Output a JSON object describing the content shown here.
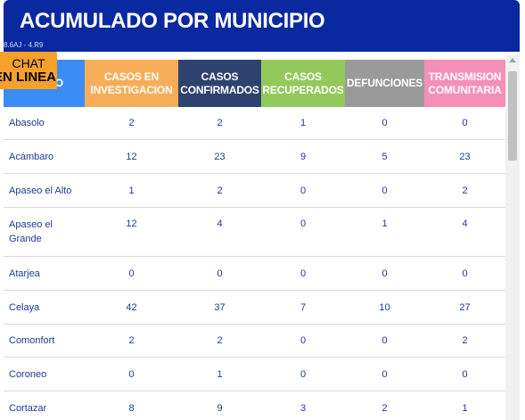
{
  "title": "ACUMULADO POR MUNICIPIO",
  "tiny_text": "8.6AJ - 4.R9",
  "chat": {
    "line1": "CHAT",
    "line2": "EN LINEA"
  },
  "colors": {
    "title_bg": "#0a28a0",
    "municipio": "#3b8cf5",
    "investigacion": "#f7ad58",
    "confirmados": "#2e4270",
    "recuperados": "#93c95a",
    "defunciones": "#9a9a9a",
    "comunitaria": "#f48fb8"
  },
  "headers": {
    "municipio": "MO",
    "investigacion": "CASOS EN INVESTIGACION",
    "confirmados": "CASOS CONFIRMADOS",
    "recuperados": "CASOS RECUPERADOS",
    "defunciones": "DEFUNCIONES",
    "comunitaria": "TRANSMISION COMUNITARIA"
  },
  "rows": [
    {
      "municipio": "Abasolo",
      "investigacion": "2",
      "confirmados": "2",
      "recuperados": "1",
      "defunciones": "0",
      "comunitaria": "0"
    },
    {
      "municipio": "Acámbaro",
      "investigacion": "12",
      "confirmados": "23",
      "recuperados": "9",
      "defunciones": "5",
      "comunitaria": "23"
    },
    {
      "municipio": "Apaseo el Alto",
      "investigacion": "1",
      "confirmados": "2",
      "recuperados": "0",
      "defunciones": "0",
      "comunitaria": "2"
    },
    {
      "municipio": "Apaseo el Grande",
      "investigacion": "12",
      "confirmados": "4",
      "recuperados": "0",
      "defunciones": "1",
      "comunitaria": "4"
    },
    {
      "municipio": "Atarjea",
      "investigacion": "0",
      "confirmados": "0",
      "recuperados": "0",
      "defunciones": "0",
      "comunitaria": "0"
    },
    {
      "municipio": "Celaya",
      "investigacion": "42",
      "confirmados": "37",
      "recuperados": "7",
      "defunciones": "10",
      "comunitaria": "27"
    },
    {
      "municipio": "Comonfort",
      "investigacion": "2",
      "confirmados": "2",
      "recuperados": "0",
      "defunciones": "0",
      "comunitaria": "2"
    },
    {
      "municipio": "Coroneo",
      "investigacion": "0",
      "confirmados": "1",
      "recuperados": "0",
      "defunciones": "0",
      "comunitaria": "0"
    },
    {
      "municipio": "Cortazar",
      "investigacion": "8",
      "confirmados": "9",
      "recuperados": "3",
      "defunciones": "2",
      "comunitaria": "1"
    }
  ]
}
